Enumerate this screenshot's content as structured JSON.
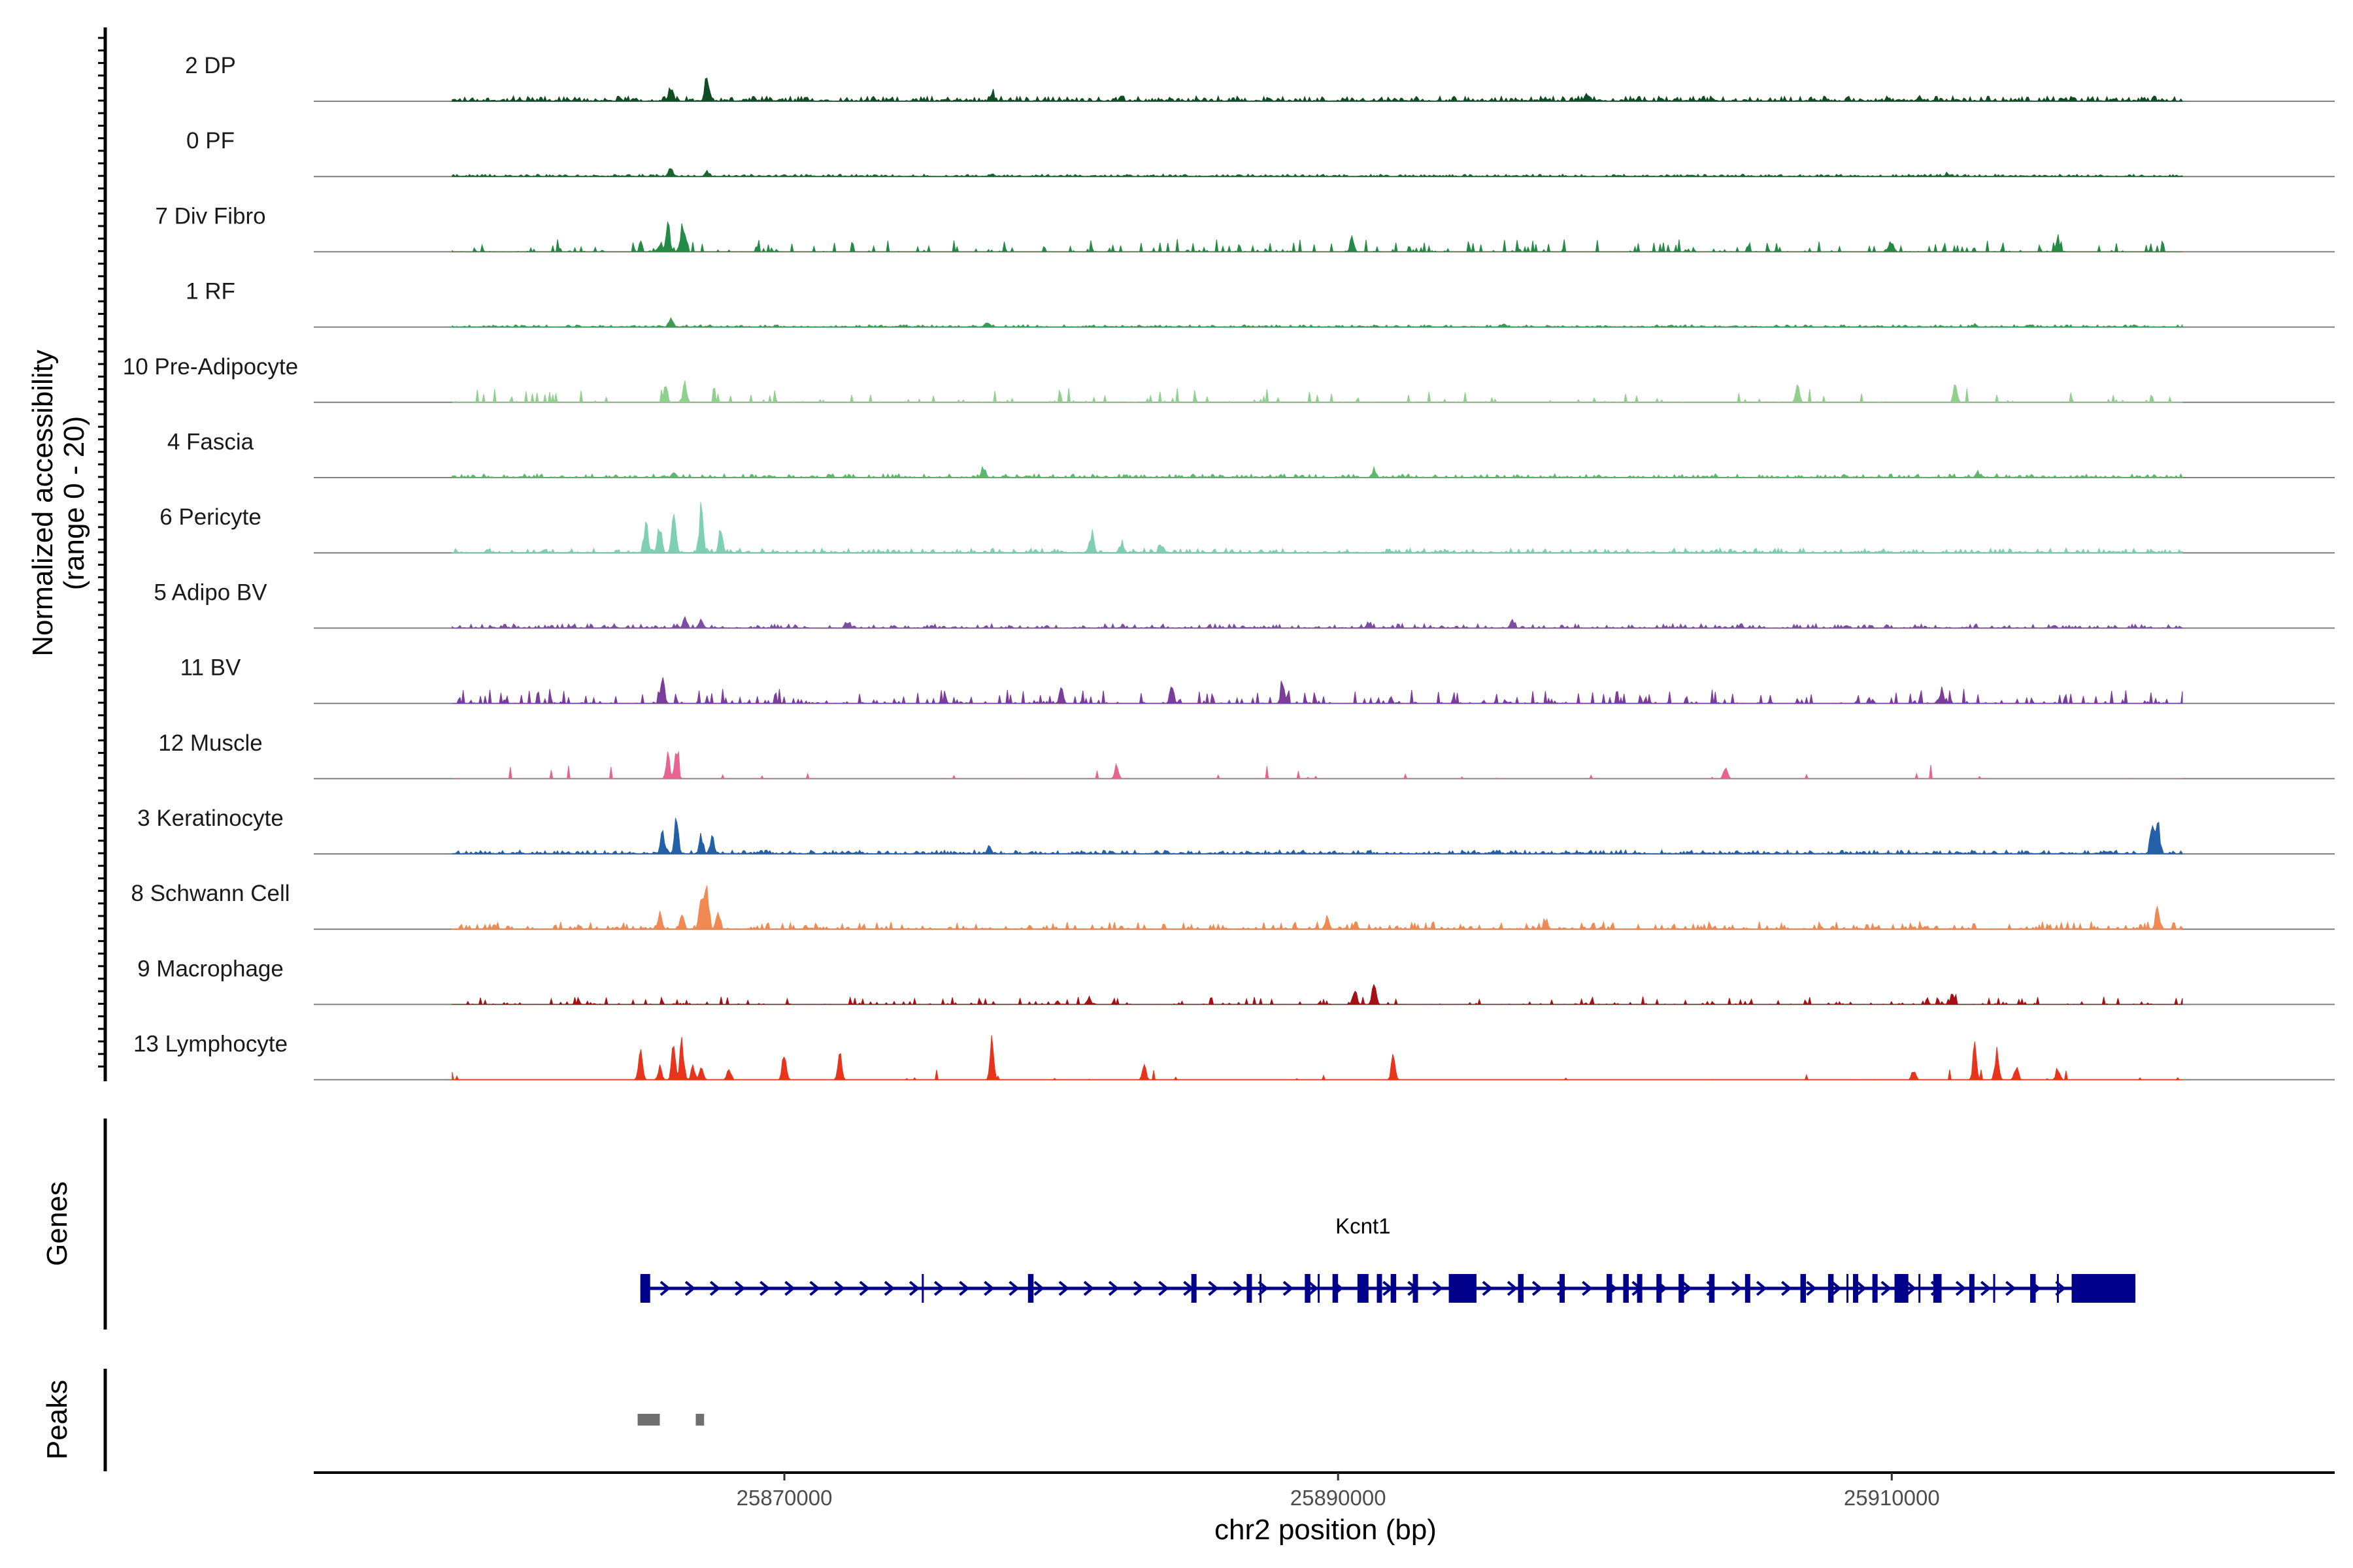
{
  "chart_data": {
    "type": "area",
    "title": "",
    "region": {
      "chrom": "chr2",
      "start": 25853000,
      "end": 25926000
    },
    "coverage_panel": {
      "ylabel_line1": "Normalized accessibility",
      "ylabel_line2": "(range 0 - 20)",
      "ylim": [
        0,
        20
      ]
    },
    "tracks": [
      {
        "name": "2 DP",
        "color": "#0f4d25",
        "base": 0.08,
        "density": 1.0,
        "noise_max": 1.4,
        "peaks": [
          [
            25865900,
            4.5
          ],
          [
            25867200,
            9.0
          ],
          [
            25877500,
            3.0
          ],
          [
            25899000,
            1.6
          ],
          [
            25911000,
            1.6
          ]
        ]
      },
      {
        "name": "0 PF",
        "color": "#19652e",
        "base": 0.05,
        "density": 1.0,
        "noise_max": 0.6,
        "peaks": [
          [
            25865900,
            3.2
          ],
          [
            25867200,
            1.8
          ],
          [
            25877500,
            1.0
          ],
          [
            25912000,
            0.8
          ]
        ]
      },
      {
        "name": "7 Div Fibro",
        "color": "#238b45",
        "base": 0,
        "density": 0.3,
        "noise_max": 3.5,
        "peaks": [
          [
            25865800,
            11.0
          ],
          [
            25866300,
            8.0
          ],
          [
            25890500,
            4.5
          ],
          [
            25910000,
            4.0
          ],
          [
            25916000,
            5.0
          ]
        ]
      },
      {
        "name": "1 RF",
        "color": "#3c9a55",
        "base": 0.05,
        "density": 0.9,
        "noise_max": 0.6,
        "peaks": [
          [
            25865900,
            3.0
          ],
          [
            25877300,
            1.2
          ],
          [
            25896000,
            0.9
          ],
          [
            25913000,
            0.8
          ]
        ]
      },
      {
        "name": "10 Pre-Adipocyte",
        "color": "#8fd08c",
        "base": 0,
        "density": 0.15,
        "noise_max": 4.0,
        "peaks": [
          [
            25865700,
            5.5
          ],
          [
            25866400,
            6.5
          ],
          [
            25912300,
            6.0
          ],
          [
            25906600,
            6.0
          ]
        ]
      },
      {
        "name": "4 Fascia",
        "color": "#5cb86a",
        "base": 0.05,
        "density": 0.8,
        "noise_max": 1.0,
        "peaks": [
          [
            25866000,
            1.6
          ],
          [
            25877200,
            3.5
          ],
          [
            25891300,
            2.2
          ],
          [
            25913100,
            1.6
          ]
        ]
      },
      {
        "name": "6 Pericyte",
        "color": "#7fcfb5",
        "base": 0.1,
        "density": 0.7,
        "noise_max": 1.2,
        "peaks": [
          [
            25865000,
            11.0
          ],
          [
            25866000,
            14.0
          ],
          [
            25867000,
            15.5
          ],
          [
            25867700,
            9.0
          ],
          [
            25865500,
            10.0
          ],
          [
            25881100,
            7.0
          ],
          [
            25882200,
            3.0
          ],
          [
            25883600,
            3.0
          ]
        ]
      },
      {
        "name": "5 Adipo BV",
        "color": "#7b4ea3",
        "base": 0.05,
        "density": 0.7,
        "noise_max": 1.2,
        "peaks": [
          [
            25866400,
            2.8
          ],
          [
            25867000,
            2.5
          ],
          [
            25872300,
            2.2
          ],
          [
            25891100,
            2.0
          ],
          [
            25896300,
            2.6
          ]
        ]
      },
      {
        "name": "11 BV",
        "color": "#7a3d9a",
        "base": 0,
        "density": 0.4,
        "noise_max": 4.0,
        "peaks": [
          [
            25865600,
            9.0
          ],
          [
            25880000,
            5.0
          ],
          [
            25884000,
            5.5
          ],
          [
            25888000,
            6.0
          ],
          [
            25911800,
            5.0
          ]
        ]
      },
      {
        "name": "12 Muscle",
        "color": "#e8638f",
        "base": 0,
        "density": 0.04,
        "noise_max": 4.0,
        "peaks": [
          [
            25865800,
            8.0
          ],
          [
            25866100,
            8.5
          ],
          [
            25882000,
            5.0
          ],
          [
            25904000,
            4.5
          ]
        ]
      },
      {
        "name": "3 Keratinocyte",
        "color": "#2460a7",
        "base": 0.1,
        "density": 0.9,
        "noise_max": 1.0,
        "peaks": [
          [
            25865600,
            8.0
          ],
          [
            25866100,
            12.0
          ],
          [
            25867000,
            6.0
          ],
          [
            25867400,
            5.5
          ],
          [
            25877400,
            2.5
          ],
          [
            25919400,
            10.5
          ],
          [
            25919600,
            13.0
          ]
        ]
      },
      {
        "name": "8 Schwann Cell",
        "color": "#f08a52",
        "base": 0.1,
        "density": 0.5,
        "noise_max": 2.0,
        "peaks": [
          [
            25865500,
            5.0
          ],
          [
            25866300,
            6.0
          ],
          [
            25867000,
            12.0
          ],
          [
            25867200,
            16.5
          ],
          [
            25867600,
            6.0
          ],
          [
            25889600,
            4.0
          ],
          [
            25897500,
            3.0
          ],
          [
            25919600,
            8.0
          ]
        ]
      },
      {
        "name": "9 Macrophage",
        "color": "#a50f15",
        "base": 0,
        "density": 0.3,
        "noise_max": 2.2,
        "peaks": [
          [
            25890600,
            5.5
          ],
          [
            25891300,
            9.0
          ],
          [
            25881000,
            2.0
          ],
          [
            25912200,
            4.0
          ]
        ]
      },
      {
        "name": "13 Lymphocyte",
        "color": "#e8341c",
        "base": 0,
        "density": 0.03,
        "noise_max": 3.0,
        "peaks": [
          [
            25864800,
            13.5
          ],
          [
            25865500,
            4.5
          ],
          [
            25866000,
            12.0
          ],
          [
            25866300,
            14.0
          ],
          [
            25866700,
            4.5
          ],
          [
            25867000,
            4.0
          ],
          [
            25868000,
            4.5
          ],
          [
            25870000,
            10.0
          ],
          [
            25872000,
            9.0
          ],
          [
            25877500,
            14.0
          ],
          [
            25883000,
            4.5
          ],
          [
            25892000,
            9.0
          ],
          [
            25910800,
            3.8
          ],
          [
            25913000,
            11.0
          ],
          [
            25913800,
            10.5
          ],
          [
            25914500,
            5.0
          ],
          [
            25916000,
            4.0
          ]
        ]
      }
    ],
    "genes_panel": {
      "ylabel": "Genes",
      "gene_name": "Kcnt1",
      "color": "#00008b",
      "start": 25864800,
      "end": 25918800,
      "exons": [
        [
          25864800,
          25865150
        ],
        [
          25878800,
          25879000
        ],
        [
          25884700,
          25884800
        ],
        [
          25886700,
          25886800
        ],
        [
          25888800,
          25889000
        ],
        [
          25889800,
          25890000
        ],
        [
          25890700,
          25891100
        ],
        [
          25891400,
          25891500
        ],
        [
          25891900,
          25892100
        ],
        [
          25892700,
          25892800
        ],
        [
          25894000,
          25895000
        ],
        [
          25896500,
          25896700
        ],
        [
          25898000,
          25898150
        ],
        [
          25899700,
          25899900
        ],
        [
          25900300,
          25900500
        ],
        [
          25900800,
          25900950
        ],
        [
          25901500,
          25901600
        ],
        [
          25902300,
          25902500
        ],
        [
          25903400,
          25903600
        ],
        [
          25904700,
          25904800
        ],
        [
          25906700,
          25906900
        ],
        [
          25907700,
          25907900
        ],
        [
          25908600,
          25908750
        ],
        [
          25909300,
          25909450
        ],
        [
          25910100,
          25910600
        ],
        [
          25911500,
          25911800
        ],
        [
          25912800,
          25912900
        ],
        [
          25915000,
          25915200
        ],
        [
          25916500,
          25918800
        ]
      ],
      "minor_ticks": [
        [
          25875000,
          25875050
        ],
        [
          25887200,
          25887250
        ],
        [
          25889300,
          25889350
        ],
        [
          25908400,
          25908450
        ],
        [
          25911000,
          25911050
        ],
        [
          25913700,
          25913750
        ],
        [
          25916000,
          25916050
        ]
      ],
      "utr": [
        [
          25864800,
          25865150
        ],
        [
          25916500,
          25918800
        ]
      ]
    },
    "peaks_panel": {
      "ylabel": "Peaks",
      "color": "#707070",
      "peaks": [
        [
          25864700,
          25865500
        ],
        [
          25866800,
          25867100
        ]
      ]
    },
    "x_axis": {
      "label": "chr2 position (bp)",
      "ticks": [
        25870000,
        25890000,
        25910000
      ],
      "tick_labels": [
        "25870000",
        "25890000",
        "25910000"
      ]
    }
  }
}
